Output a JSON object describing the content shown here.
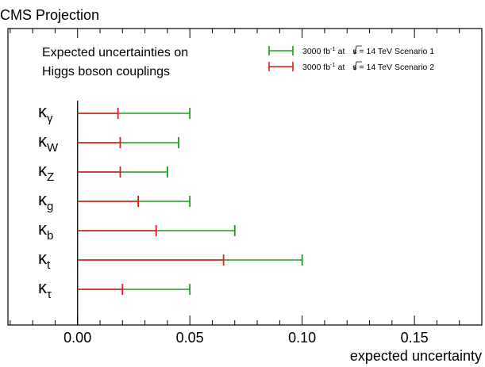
{
  "header": {
    "title": "CMS Projection"
  },
  "annotation": {
    "line1": "Expected uncertainties on",
    "line2": "Higgs boson couplings"
  },
  "legend": {
    "placement": "top-right",
    "entries": [
      {
        "lumi": "3000 fb",
        "sup": "-1",
        "mid": " at ",
        "energy": "s = 14 TeV",
        "scenario": " Scenario 1",
        "color": "#1f9a1f"
      },
      {
        "lumi": "3000 fb",
        "sup": "-1",
        "mid": " at ",
        "energy": "s = 14 TeV",
        "scenario": " Scenario 2",
        "color": "#e01b1b"
      }
    ]
  },
  "chart_data": {
    "type": "bar",
    "orientation": "horizontal",
    "title": "",
    "xlabel": "expected uncertainty",
    "ylabel": "",
    "xlim": [
      -0.031,
      0.18
    ],
    "x_ticks": [
      "0.00",
      "0.05",
      "0.10",
      "0.15"
    ],
    "x_tick_values": [
      0.0,
      0.05,
      0.1,
      0.15
    ],
    "grid": false,
    "categories": [
      {
        "base": "κ",
        "sub": "γ"
      },
      {
        "base": "κ",
        "sub": "W"
      },
      {
        "base": "κ",
        "sub": "Z"
      },
      {
        "base": "κ",
        "sub": "g"
      },
      {
        "base": "κ",
        "sub": "b"
      },
      {
        "base": "κ",
        "sub": "t"
      },
      {
        "base": "κ",
        "sub": "τ"
      }
    ],
    "series": [
      {
        "name": "Scenario 1",
        "color": "#1f9a1f",
        "values": [
          0.05,
          0.045,
          0.04,
          0.05,
          0.07,
          0.1,
          0.05
        ]
      },
      {
        "name": "Scenario 2",
        "color": "#e01b1b",
        "values": [
          0.018,
          0.019,
          0.019,
          0.027,
          0.035,
          0.065,
          0.02
        ]
      }
    ]
  }
}
